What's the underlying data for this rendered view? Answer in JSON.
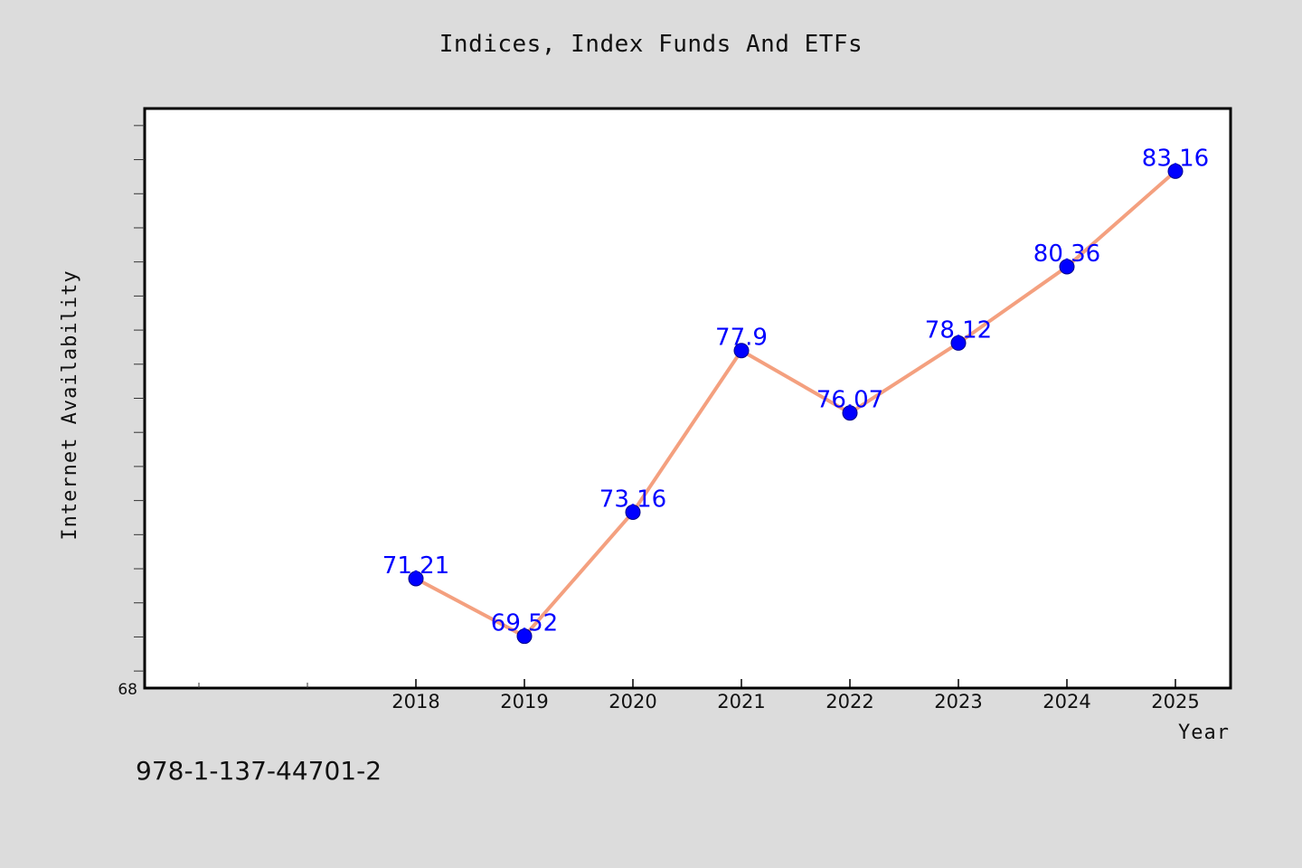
{
  "chart_data": {
    "type": "line",
    "title": "Indices, Index Funds And ETFs",
    "xlabel": "Year",
    "ylabel": "Internet Availability",
    "x": [
      "2018",
      "2019",
      "2020",
      "2021",
      "2022",
      "2023",
      "2024",
      "2025"
    ],
    "series": [
      {
        "values": [
          71.21,
          69.52,
          73.16,
          77.9,
          76.07,
          78.12,
          80.36,
          83.16
        ],
        "data_labels": [
          "71.21",
          "69.52",
          "73.16",
          "77.9",
          "76.07",
          "78.12",
          "80.36",
          "83.16"
        ]
      }
    ],
    "y_tick_labels": [
      "68"
    ],
    "ylim": [
      68,
      85
    ],
    "grid": false,
    "line_color": "#f4a07f",
    "marker_color": "#0000ff",
    "label_color": "#0000ff",
    "plot_background": "#ffffff",
    "page_background": "#dcdcdc"
  },
  "footer_code": "978-1-137-44701-2"
}
